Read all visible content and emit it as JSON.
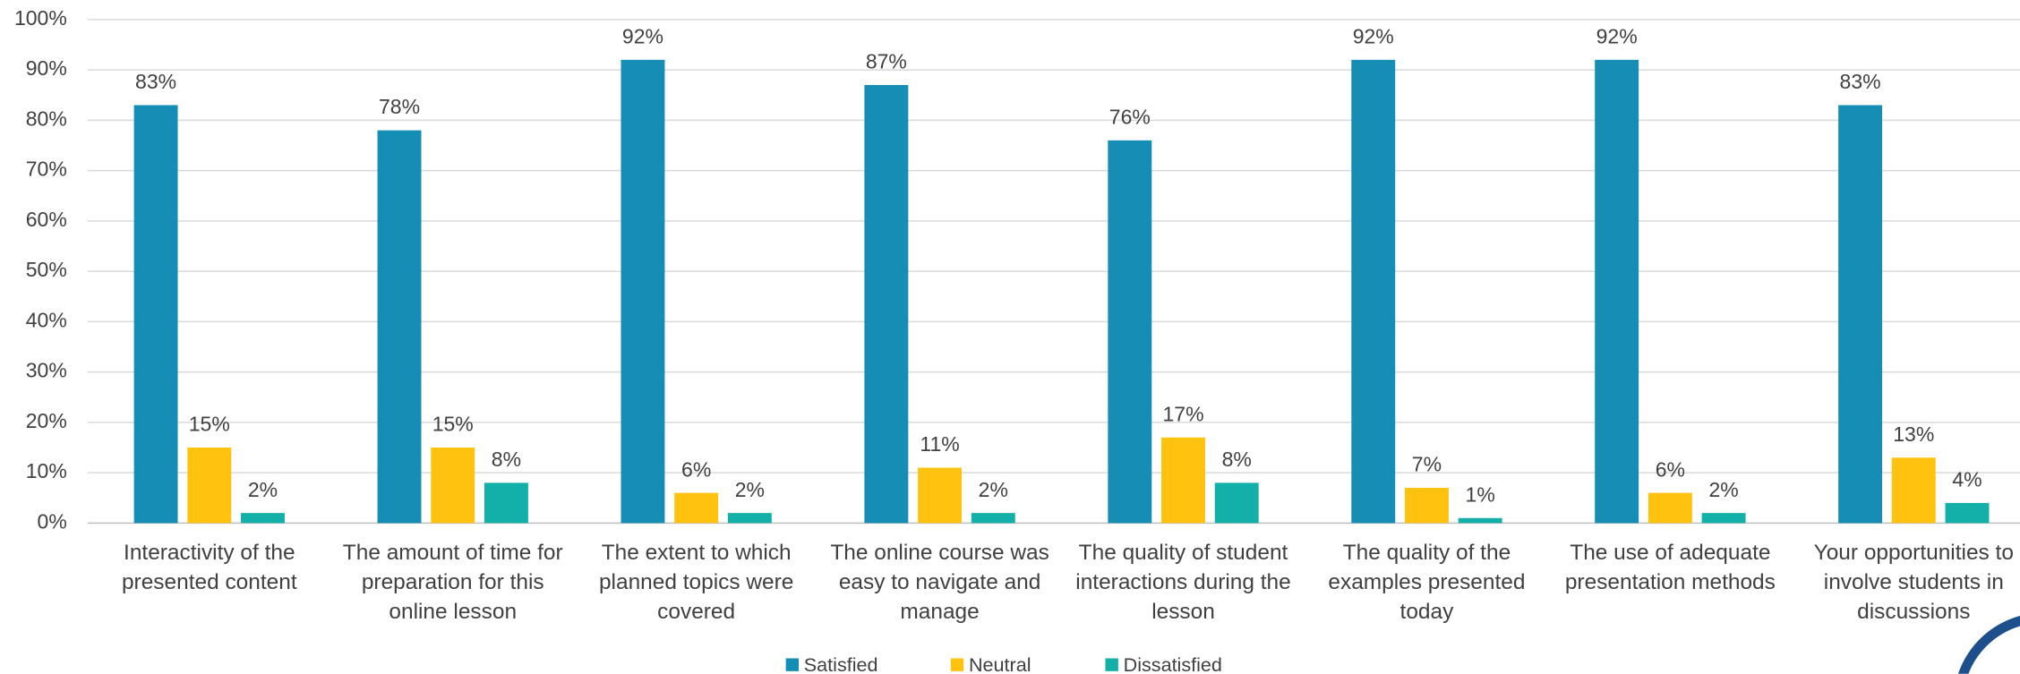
{
  "chart_data": {
    "type": "bar",
    "categories": [
      "Interactivity of the presented content",
      "The amount of time for preparation for this online lesson",
      "The extent to which planned topics were covered",
      "The online course was easy to navigate and manage",
      "The quality of student interactions during the lesson",
      "The quality of the examples presented today",
      "The use of adequate presentation methods",
      "Your opportunities to involve students in discussions"
    ],
    "series": [
      {
        "name": "Satisfied",
        "color": "#168db5",
        "values": [
          83,
          78,
          92,
          87,
          76,
          92,
          92,
          83
        ],
        "value_labels": [
          "83%",
          "78%",
          "92%",
          "87%",
          "76%",
          "92%",
          "92%",
          "83%"
        ]
      },
      {
        "name": "Neutral",
        "color": "#ffc30f",
        "values": [
          15,
          15,
          6,
          11,
          17,
          7,
          6,
          13
        ],
        "value_labels": [
          "15%",
          "15%",
          "6%",
          "11%",
          "17%",
          "7%",
          "6%",
          "13%"
        ]
      },
      {
        "name": "Dissatisfied",
        "color": "#13b0aa",
        "values": [
          2,
          8,
          2,
          2,
          8,
          1,
          2,
          4
        ],
        "value_labels": [
          "2%",
          "8%",
          "2%",
          "2%",
          "8%",
          "1%",
          "2%",
          "4%"
        ]
      }
    ],
    "ylim": [
      0,
      100
    ],
    "yticks": [
      {
        "value": 0,
        "label": "0%"
      },
      {
        "value": 10,
        "label": "10%"
      },
      {
        "value": 20,
        "label": "20%"
      },
      {
        "value": 30,
        "label": "30%"
      },
      {
        "value": 40,
        "label": "40%"
      },
      {
        "value": 50,
        "label": "50%"
      },
      {
        "value": 60,
        "label": "60%"
      },
      {
        "value": 70,
        "label": "70%"
      },
      {
        "value": 80,
        "label": "80%"
      },
      {
        "value": 90,
        "label": "90%"
      },
      {
        "value": 100,
        "label": "100%"
      }
    ],
    "grid": true,
    "legend": "bottom"
  }
}
